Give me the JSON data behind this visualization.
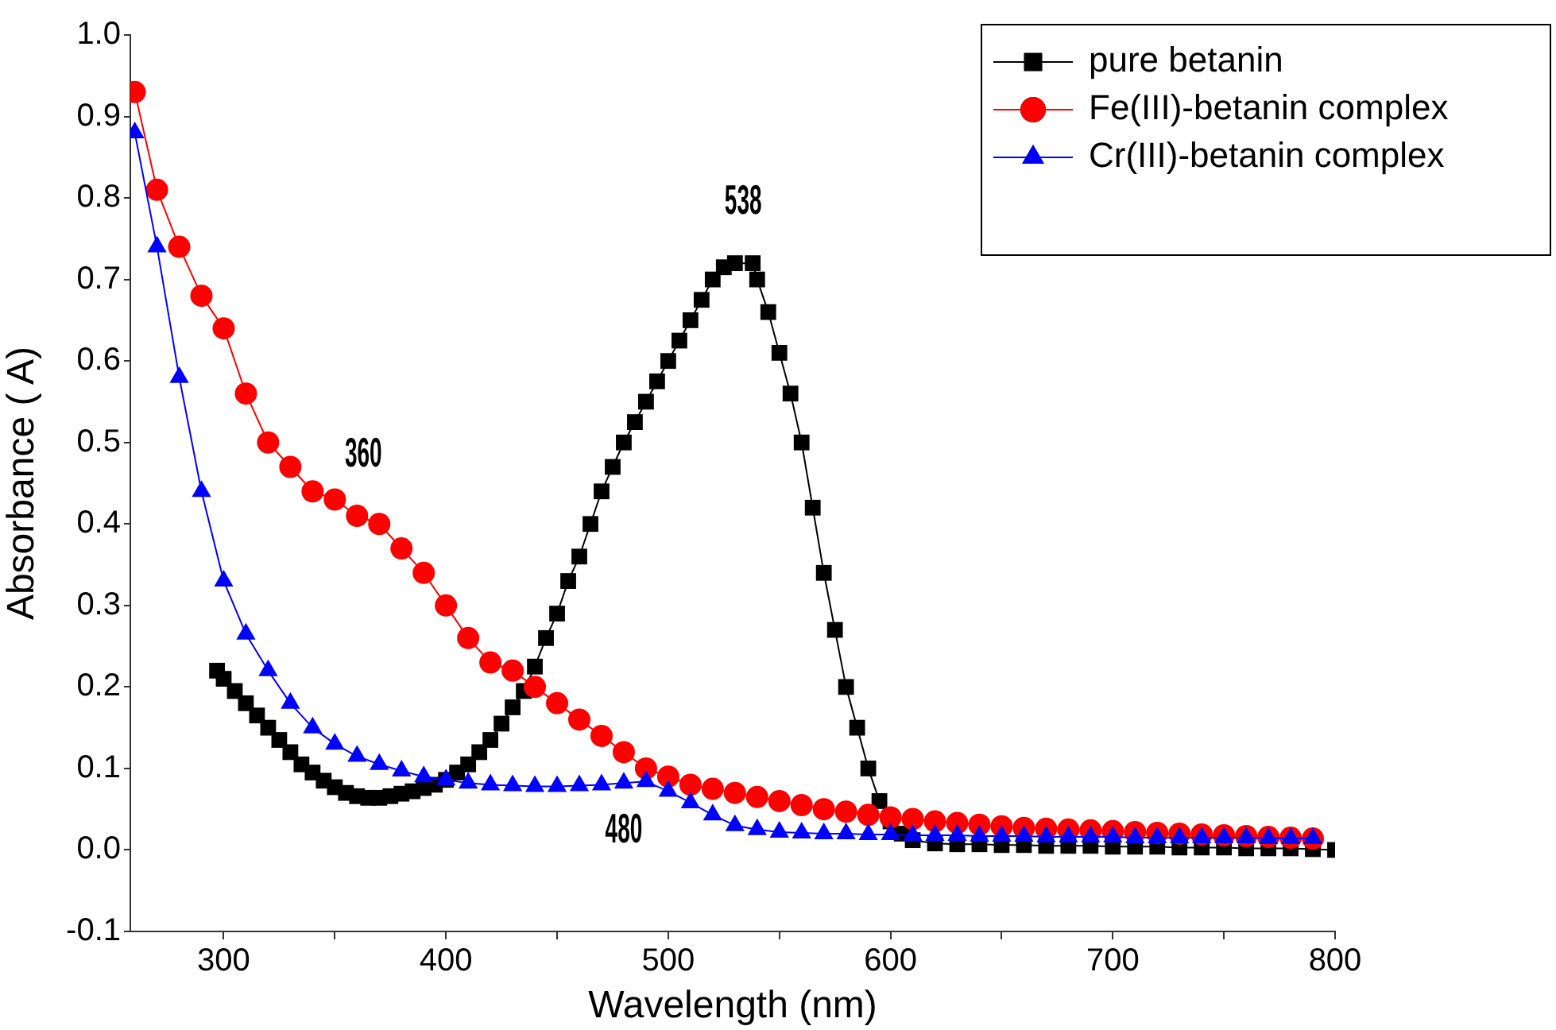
{
  "chart_data": {
    "type": "line",
    "xlabel": "Wavelength (nm)",
    "ylabel": "Absorbance ( A)",
    "xlim": [
      258,
      800
    ],
    "xticks": [
      300,
      {
        "value": 350,
        "label": null
      },
      400,
      {
        "value": 450,
        "label": null
      },
      500,
      {
        "value": 550,
        "label": null
      },
      600,
      {
        "value": 650,
        "label": null
      },
      700,
      {
        "value": 750,
        "label": null
      },
      800
    ],
    "ylim": [
      -0.1,
      1.0
    ],
    "yticks": [
      {
        "value": -0.1,
        "label": "-0.1"
      },
      {
        "value": 0,
        "label": "0.0"
      },
      {
        "value": 0.1,
        "label": "0.1"
      },
      {
        "value": 0.2,
        "label": "0.2"
      },
      {
        "value": 0.3,
        "label": "0.3"
      },
      {
        "value": 0.4,
        "label": "0.4"
      },
      {
        "value": 0.5,
        "label": "0.5"
      },
      {
        "value": 0.6,
        "label": "0.6"
      },
      {
        "value": 0.7,
        "label": "0.7"
      },
      {
        "value": 0.8,
        "label": "0.8"
      },
      {
        "value": 0.9,
        "label": "0.9"
      },
      {
        "value": 1.0,
        "label": "1.0"
      }
    ],
    "legend": "top right",
    "annotations": [
      {
        "text": "538",
        "x": 538,
        "y": 0.72
      },
      {
        "text": "360",
        "x": 360,
        "y": 0.41
      },
      {
        "text": "480",
        "x": 480,
        "y": 0.082
      }
    ],
    "series": [
      {
        "name": "pure betanin",
        "color": "#000000",
        "marker": "square",
        "x": [
          297,
          300,
          305,
          310,
          315,
          320,
          325,
          330,
          335,
          340,
          345,
          350,
          355,
          360,
          365,
          370,
          375,
          380,
          385,
          390,
          395,
          400,
          405,
          410,
          415,
          420,
          425,
          430,
          435,
          440,
          445,
          450,
          455,
          460,
          465,
          470,
          475,
          480,
          485,
          490,
          495,
          500,
          505,
          510,
          515,
          520,
          525,
          530,
          538,
          540,
          545,
          550,
          555,
          560,
          565,
          570,
          575,
          580,
          585,
          590,
          595,
          600,
          605,
          610,
          620,
          630,
          640,
          650,
          660,
          670,
          680,
          690,
          700,
          710,
          720,
          730,
          740,
          750,
          760,
          770,
          780,
          790,
          800
        ],
        "values": [
          0.22,
          0.21,
          0.195,
          0.18,
          0.165,
          0.15,
          0.135,
          0.12,
          0.105,
          0.095,
          0.085,
          0.077,
          0.07,
          0.066,
          0.064,
          0.064,
          0.066,
          0.069,
          0.072,
          0.076,
          0.08,
          0.086,
          0.095,
          0.105,
          0.12,
          0.135,
          0.155,
          0.175,
          0.195,
          0.225,
          0.26,
          0.29,
          0.33,
          0.36,
          0.4,
          0.44,
          0.47,
          0.5,
          0.525,
          0.55,
          0.575,
          0.6,
          0.625,
          0.65,
          0.675,
          0.7,
          0.715,
          0.72,
          0.72,
          0.7,
          0.66,
          0.61,
          0.56,
          0.5,
          0.42,
          0.34,
          0.27,
          0.2,
          0.15,
          0.1,
          0.06,
          0.035,
          0.02,
          0.012,
          0.008,
          0.007,
          0.007,
          0.006,
          0.006,
          0.005,
          0.005,
          0.005,
          0.004,
          0.004,
          0.004,
          0.003,
          0.003,
          0.003,
          0.002,
          0.002,
          0.002,
          0.001,
          0.0
        ]
      },
      {
        "name": "Fe(III)-betanin complex",
        "color": "#ff0000",
        "marker": "circle",
        "x": [
          260,
          270,
          280,
          290,
          300,
          310,
          320,
          330,
          340,
          350,
          360,
          370,
          380,
          390,
          400,
          410,
          420,
          430,
          440,
          450,
          460,
          470,
          480,
          490,
          500,
          510,
          520,
          530,
          540,
          550,
          560,
          570,
          580,
          590,
          600,
          610,
          620,
          630,
          640,
          650,
          660,
          670,
          680,
          690,
          700,
          710,
          720,
          730,
          740,
          750,
          760,
          770,
          780,
          790
        ],
        "values": [
          0.93,
          0.81,
          0.74,
          0.68,
          0.64,
          0.56,
          0.5,
          0.47,
          0.44,
          0.43,
          0.41,
          0.4,
          0.37,
          0.34,
          0.3,
          0.26,
          0.23,
          0.22,
          0.2,
          0.18,
          0.16,
          0.14,
          0.12,
          0.1,
          0.09,
          0.08,
          0.075,
          0.07,
          0.065,
          0.06,
          0.055,
          0.05,
          0.047,
          0.043,
          0.04,
          0.038,
          0.035,
          0.033,
          0.031,
          0.029,
          0.027,
          0.026,
          0.025,
          0.024,
          0.023,
          0.022,
          0.021,
          0.02,
          0.019,
          0.018,
          0.017,
          0.016,
          0.015,
          0.014
        ]
      },
      {
        "name": "Cr(III)-betanin complex",
        "color": "#0000ff",
        "marker": "triangle",
        "x": [
          260,
          270,
          280,
          290,
          300,
          310,
          320,
          330,
          340,
          350,
          360,
          370,
          380,
          390,
          400,
          410,
          420,
          430,
          440,
          450,
          460,
          470,
          480,
          490,
          500,
          510,
          520,
          530,
          540,
          550,
          560,
          570,
          580,
          590,
          600,
          610,
          620,
          630,
          640,
          650,
          660,
          670,
          680,
          690,
          700,
          710,
          720,
          730,
          740,
          750,
          760,
          770,
          780,
          790
        ],
        "values": [
          0.88,
          0.74,
          0.58,
          0.44,
          0.33,
          0.265,
          0.22,
          0.18,
          0.15,
          0.13,
          0.115,
          0.105,
          0.097,
          0.09,
          0.086,
          0.082,
          0.08,
          0.079,
          0.078,
          0.078,
          0.079,
          0.08,
          0.082,
          0.084,
          0.072,
          0.058,
          0.043,
          0.03,
          0.025,
          0.022,
          0.021,
          0.02,
          0.02,
          0.019,
          0.019,
          0.018,
          0.018,
          0.018,
          0.017,
          0.017,
          0.017,
          0.016,
          0.016,
          0.016,
          0.016,
          0.015,
          0.015,
          0.015,
          0.015,
          0.015,
          0.015,
          0.014,
          0.014,
          0.014
        ]
      }
    ]
  }
}
